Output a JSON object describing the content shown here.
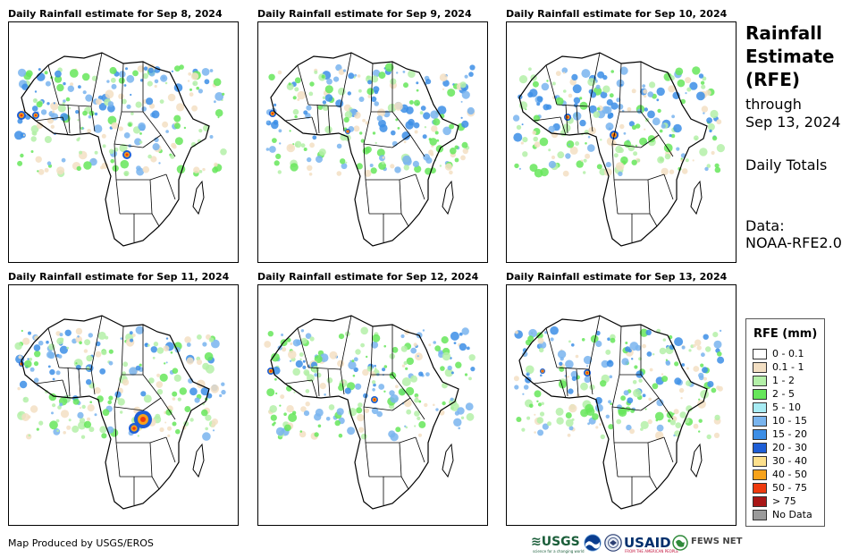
{
  "panels": [
    {
      "title": "Daily Rainfall estimate for Sep 8, 2024"
    },
    {
      "title": "Daily Rainfall estimate for Sep 9, 2024"
    },
    {
      "title": "Daily Rainfall estimate for Sep 10, 2024"
    },
    {
      "title": "Daily Rainfall estimate for Sep 11, 2024"
    },
    {
      "title": "Daily Rainfall estimate for Sep 12, 2024"
    },
    {
      "title": "Daily Rainfall estimate for Sep 13, 2024"
    }
  ],
  "info": {
    "title_line1": "Rainfall",
    "title_line2": "Estimate",
    "title_line3": "(RFE)",
    "through_label": "through",
    "through_date": "Sep 13, 2024",
    "totals_label": "Daily Totals",
    "data_label": "Data:",
    "data_source": "NOAA-RFE2.0"
  },
  "legend": {
    "title": "RFE (mm)",
    "items": [
      {
        "label": "0 - 0.1",
        "color": "#ffffff"
      },
      {
        "label": "0.1 - 1",
        "color": "#f3dfc3"
      },
      {
        "label": "1 - 2",
        "color": "#b4f0a8"
      },
      {
        "label": "2 - 5",
        "color": "#66e65a"
      },
      {
        "label": "5 - 10",
        "color": "#a8ecf4"
      },
      {
        "label": "10 - 15",
        "color": "#79b4ee"
      },
      {
        "label": "15 - 20",
        "color": "#3c8ee6"
      },
      {
        "label": "20 - 30",
        "color": "#1e5ed6"
      },
      {
        "label": "30 - 40",
        "color": "#fde08c"
      },
      {
        "label": "40 - 50",
        "color": "#f7a21a"
      },
      {
        "label": "50 - 75",
        "color": "#ee3a0e"
      },
      {
        "label": "> 75",
        "color": "#a81616"
      },
      {
        "label": "No Data",
        "color": "#9a9a9a"
      }
    ]
  },
  "footer": {
    "credit": "Map Produced by USGS/EROS",
    "usgs": "≋USGS",
    "usgs_tagline": "science for a changing world",
    "usaid": "USAID",
    "usaid_tagline": "FROM THE AMERICAN PEOPLE",
    "fews": "FEWS NET"
  }
}
